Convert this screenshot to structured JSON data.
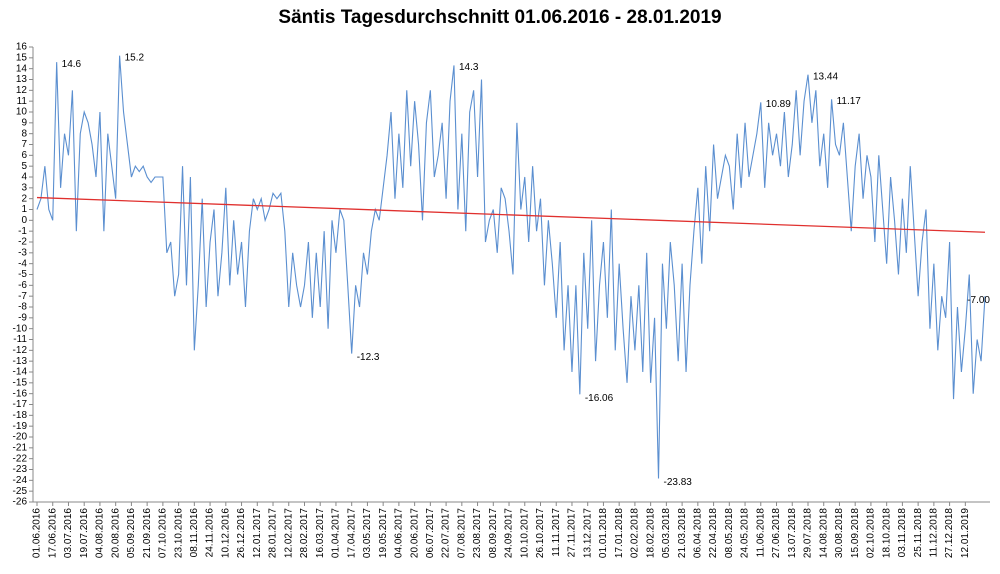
{
  "chart_data": {
    "type": "line",
    "title": "Säntis Tagesdurchschnitt 01.06.2016 - 28.01.2019",
    "color": "#5b8fd0",
    "categories": [
      "01.06.2016",
      null,
      null,
      null,
      "17.06.2016",
      null,
      null,
      null,
      "03.07.2016",
      null,
      null,
      null,
      "19.07.2016",
      null,
      null,
      null,
      "04.08.2016",
      null,
      null,
      null,
      "20.08.2016",
      null,
      null,
      null,
      "05.09.2016",
      null,
      null,
      null,
      "21.09.2016",
      null,
      null,
      null,
      "07.10.2016",
      null,
      null,
      null,
      "23.10.2016",
      null,
      null,
      null,
      "08.11.2016",
      null,
      null,
      null,
      "24.11.2016",
      null,
      null,
      null,
      "10.12.2016",
      null,
      null,
      null,
      "26.12.2016",
      null,
      null,
      null,
      "12.01.2017",
      null,
      null,
      null,
      "28.01.2017",
      null,
      null,
      null,
      "12.02.2017",
      null,
      null,
      null,
      "28.02.2017",
      null,
      null,
      null,
      "16.03.2017",
      null,
      null,
      null,
      "01.04.2017",
      null,
      null,
      null,
      "17.04.2017",
      null,
      null,
      null,
      "03.05.2017",
      null,
      null,
      null,
      "19.05.2017",
      null,
      null,
      null,
      "04.06.2017",
      null,
      null,
      null,
      "20.06.2017",
      null,
      null,
      null,
      "06.07.2017",
      null,
      null,
      null,
      "22.07.2017",
      null,
      null,
      null,
      "07.08.2017",
      null,
      null,
      null,
      "23.08.2017",
      null,
      null,
      null,
      "08.09.2017",
      null,
      null,
      null,
      "24.09.2017",
      null,
      null,
      null,
      "10.10.2017",
      null,
      null,
      null,
      "26.10.2017",
      null,
      null,
      null,
      "11.11.2017",
      null,
      null,
      null,
      "27.11.2017",
      null,
      null,
      null,
      "13.12.2017",
      null,
      null,
      null,
      "01.01.2018",
      null,
      null,
      null,
      "17.01.2018",
      null,
      null,
      null,
      "02.02.2018",
      null,
      null,
      null,
      "18.02.2018",
      null,
      null,
      null,
      "05.03.2018",
      null,
      null,
      null,
      "21.03.2018",
      null,
      null,
      null,
      "06.04.2018",
      null,
      null,
      null,
      "22.04.2018",
      null,
      null,
      null,
      "08.05.2018",
      null,
      null,
      null,
      "24.05.2018",
      null,
      null,
      null,
      "11.06.2018",
      null,
      null,
      null,
      "27.06.2018",
      null,
      null,
      null,
      "13.07.2018",
      null,
      null,
      null,
      "29.07.2018",
      null,
      null,
      null,
      "14.08.2018",
      null,
      null,
      null,
      "30.08.2018",
      null,
      null,
      null,
      "15.09.2018",
      null,
      null,
      null,
      "02.10.2018",
      null,
      null,
      null,
      "18.10.2018",
      null,
      null,
      null,
      "03.11.2018",
      null,
      null,
      null,
      "25.11.2018",
      null,
      null,
      null,
      "11.12.2018",
      null,
      null,
      null,
      "27.12.2018",
      null,
      null,
      null,
      "12.01.2019",
      null,
      null,
      null,
      null,
      null
    ],
    "values": [
      1,
      2,
      5,
      1,
      0,
      14.6,
      3,
      8,
      6,
      12,
      -1,
      8,
      10,
      9,
      7,
      4,
      10,
      -1,
      8,
      5,
      2,
      15.2,
      10,
      7,
      4,
      5,
      4.5,
      5,
      4,
      3.5,
      4,
      4,
      4,
      -3,
      -2,
      -7,
      -5,
      5,
      -6,
      4,
      -12,
      -6,
      2,
      -8,
      -2,
      1,
      -7,
      -3,
      3,
      -6,
      0,
      -5,
      -2,
      -8,
      -1,
      2,
      1,
      2,
      0,
      1,
      2.5,
      2,
      2.5,
      -1,
      -8,
      -3,
      -6,
      -8,
      -6,
      -2,
      -9,
      -3,
      -8,
      -1,
      -10,
      0,
      -3,
      1,
      0,
      -6,
      -12.3,
      -6,
      -8,
      -3,
      -5,
      -1,
      1,
      0,
      3,
      6,
      10,
      2,
      8,
      3,
      12,
      5,
      11,
      7,
      0,
      9,
      12,
      4,
      6,
      9,
      2,
      11,
      14.3,
      1,
      8,
      -1,
      10,
      12,
      4,
      13,
      -2,
      0,
      1,
      -3,
      3,
      2,
      -1,
      -5,
      9,
      1,
      4,
      -2,
      5,
      -1,
      2,
      -6,
      0,
      -4,
      -9,
      -2,
      -12,
      -6,
      -14,
      -6,
      -16.06,
      -3,
      -10,
      0,
      -13,
      -6,
      -2,
      -9,
      1,
      -12,
      -4,
      -10,
      -15,
      -7,
      -12,
      -6,
      -14,
      -3,
      -15,
      -9,
      -23.83,
      -4,
      -10,
      -2,
      -6,
      -13,
      -4,
      -14,
      -6,
      -1,
      3,
      -4,
      5,
      -1,
      7,
      2,
      4,
      6,
      5,
      1,
      8,
      3,
      9,
      4,
      6,
      8,
      10.89,
      3,
      9,
      6,
      8,
      5,
      10,
      4,
      7,
      12,
      6,
      11,
      13.44,
      9,
      12,
      5,
      8,
      3,
      11.17,
      7,
      6,
      9,
      4,
      -1,
      5,
      8,
      2,
      6,
      4,
      -2,
      6,
      1,
      -4,
      4,
      0,
      -5,
      2,
      -3,
      5,
      -1,
      -7,
      -2,
      1,
      -10,
      -4,
      -12,
      -7,
      -9,
      -2,
      -16.5,
      -8,
      -14,
      -10,
      -5,
      -16,
      -11,
      -13,
      -7
    ],
    "annotations": [
      {
        "index": 5,
        "label": "14.6"
      },
      {
        "index": 21,
        "label": "15.2"
      },
      {
        "index": 80,
        "label": "-12.3"
      },
      {
        "index": 106,
        "label": "14.3"
      },
      {
        "index": 138,
        "label": "-16.06"
      },
      {
        "index": 158,
        "label": "-23.83"
      },
      {
        "index": 184,
        "label": "10.89"
      },
      {
        "index": 196,
        "label": "13.44"
      },
      {
        "index": 202,
        "label": "11.17"
      },
      {
        "index": 241,
        "label": "-7.00"
      }
    ],
    "trend": {
      "color": "#e0302e",
      "values": [
        2.1,
        -1.1
      ]
    },
    "ylim": [
      -26,
      16
    ],
    "yticks": [
      -26,
      -25,
      -24,
      -23,
      -22,
      -21,
      -20,
      -19,
      -18,
      -17,
      -16,
      -15,
      -14,
      -13,
      -12,
      -11,
      -10,
      -9,
      -8,
      -7,
      -6,
      -5,
      -4,
      -3,
      -2,
      -1,
      0,
      1,
      2,
      3,
      4,
      5,
      6,
      7,
      8,
      9,
      10,
      11,
      12,
      13,
      14,
      15,
      16
    ]
  }
}
